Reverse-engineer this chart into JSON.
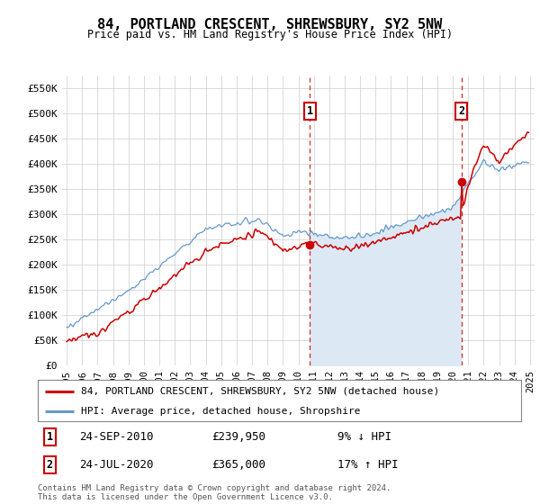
{
  "title": "84, PORTLAND CRESCENT, SHREWSBURY, SY2 5NW",
  "subtitle": "Price paid vs. HM Land Registry's House Price Index (HPI)",
  "legend_line1": "84, PORTLAND CRESCENT, SHREWSBURY, SY2 5NW (detached house)",
  "legend_line2": "HPI: Average price, detached house, Shropshire",
  "footnote": "Contains HM Land Registry data © Crown copyright and database right 2024.\nThis data is licensed under the Open Government Licence v3.0.",
  "transaction1_date": "24-SEP-2010",
  "transaction1_price": "£239,950",
  "transaction1_pct": "9% ↓ HPI",
  "transaction2_date": "24-JUL-2020",
  "transaction2_price": "£365,000",
  "transaction2_pct": "17% ↑ HPI",
  "ylim": [
    0,
    575000
  ],
  "yticks": [
    0,
    50000,
    100000,
    150000,
    200000,
    250000,
    300000,
    350000,
    400000,
    450000,
    500000,
    550000
  ],
  "ytick_labels": [
    "£0",
    "£50K",
    "£100K",
    "£150K",
    "£200K",
    "£250K",
    "£300K",
    "£350K",
    "£400K",
    "£450K",
    "£500K",
    "£550K"
  ],
  "background_color": "#ffffff",
  "hpi_color": "#6699cc",
  "hpi_fill_color": "#dce9f5",
  "price_color": "#cc0000",
  "vline_color": "#cc0000",
  "transaction1_x": 2010.73,
  "transaction1_y": 239950,
  "transaction2_x": 2020.55,
  "transaction2_y": 365000,
  "x_start": 1995,
  "x_end": 2025,
  "xtick_years": [
    1995,
    1996,
    1997,
    1998,
    1999,
    2000,
    2001,
    2002,
    2003,
    2004,
    2005,
    2006,
    2007,
    2008,
    2009,
    2010,
    2011,
    2012,
    2013,
    2014,
    2015,
    2016,
    2017,
    2018,
    2019,
    2020,
    2021,
    2022,
    2023,
    2024,
    2025
  ]
}
